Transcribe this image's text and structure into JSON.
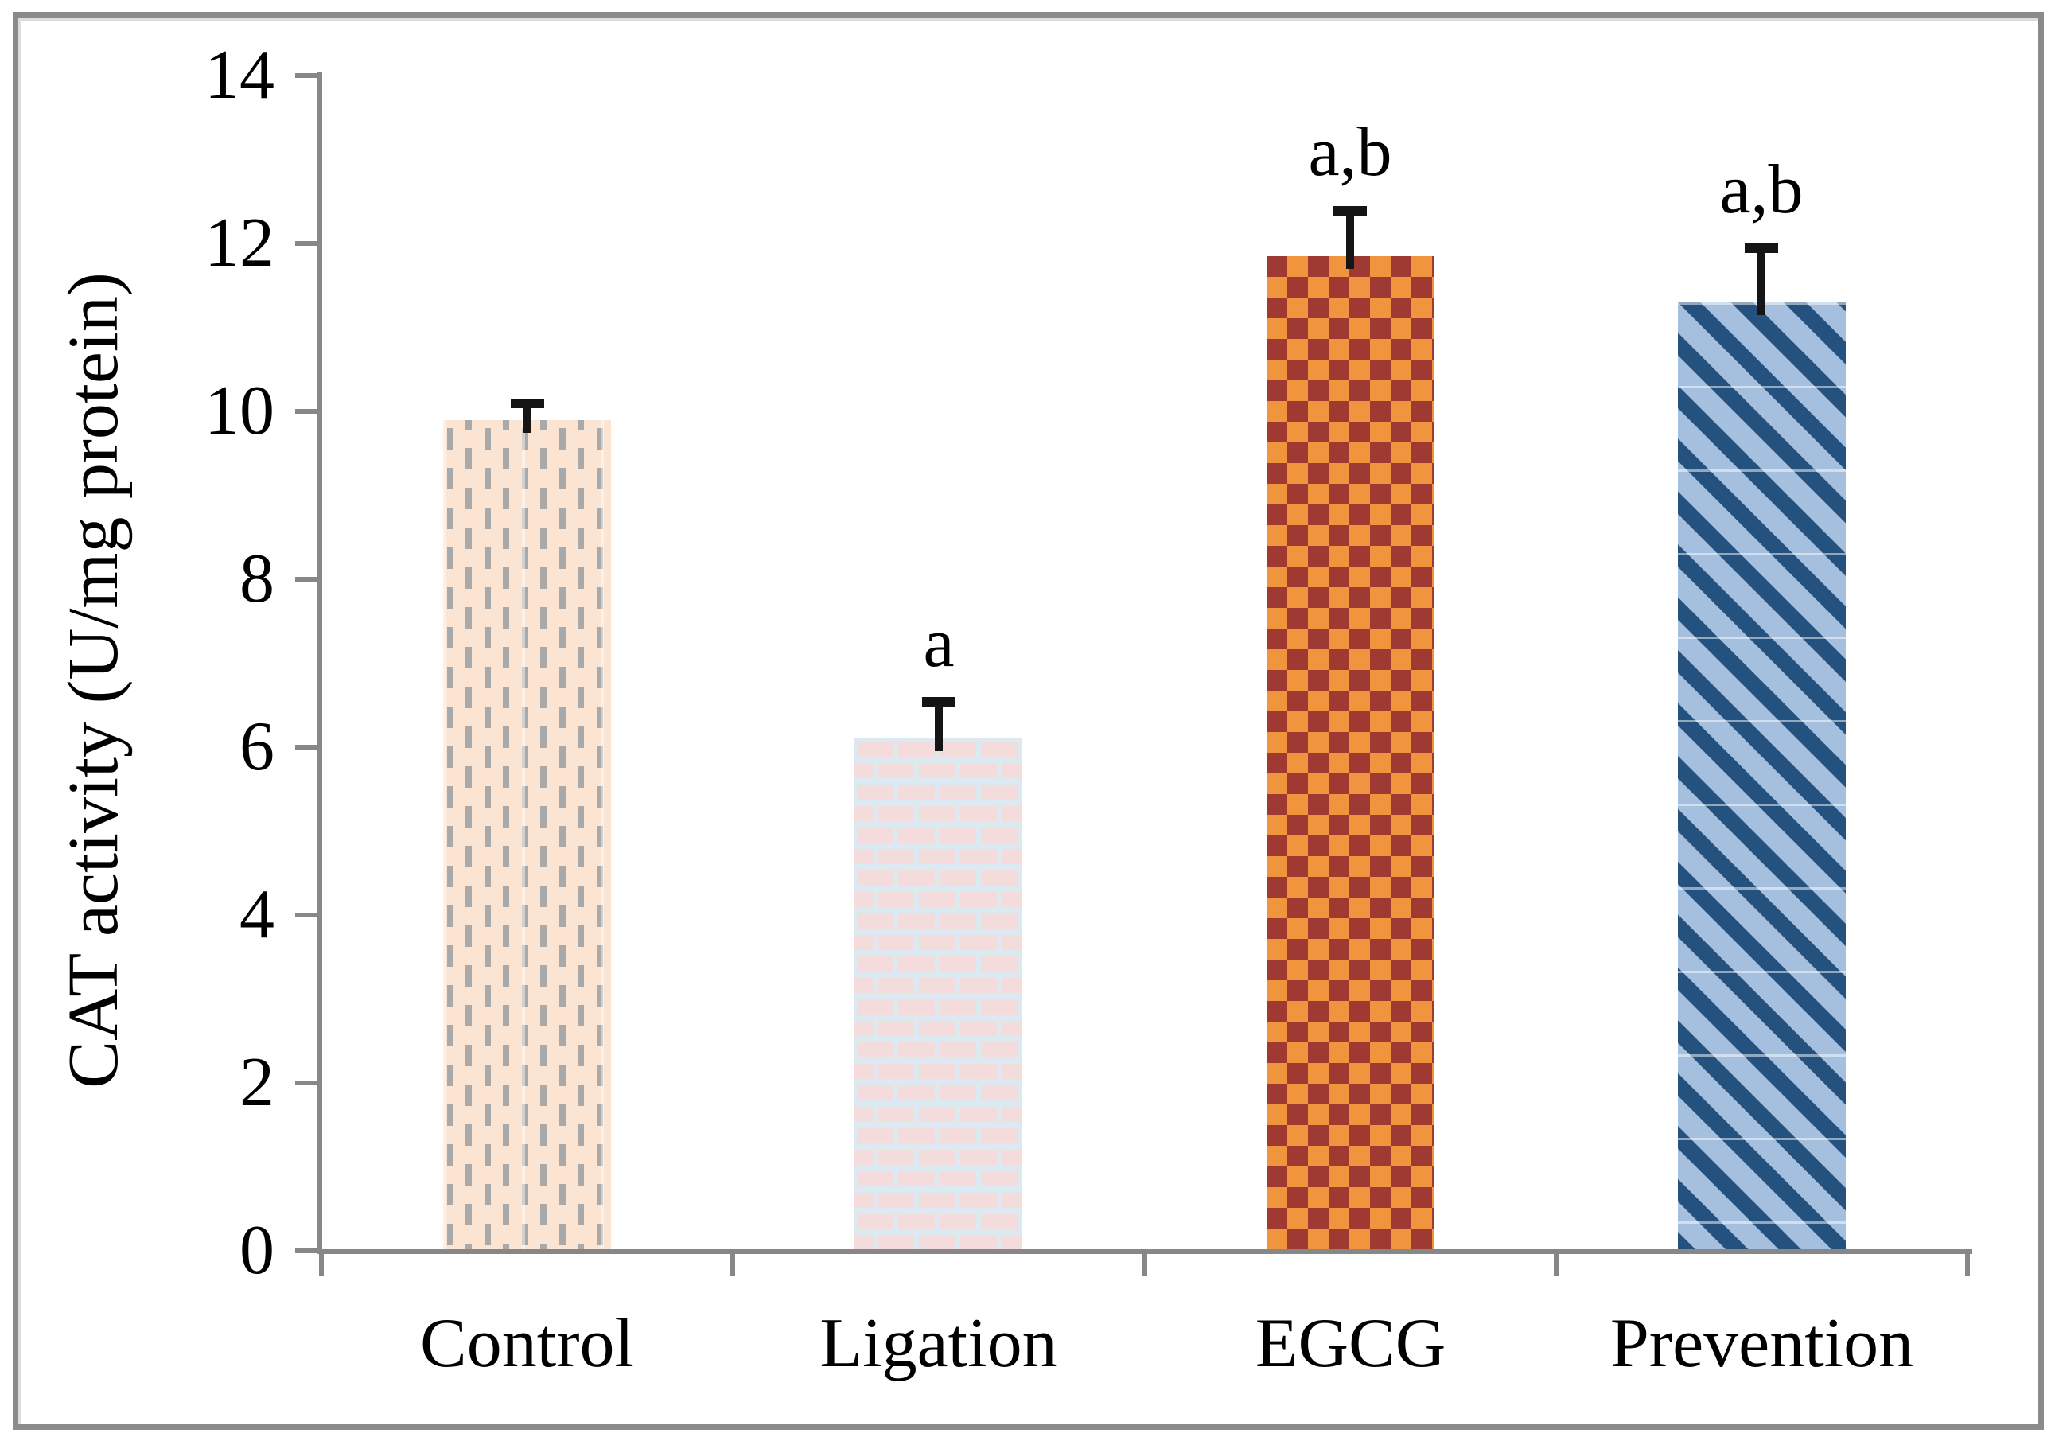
{
  "chart_data": {
    "type": "bar",
    "title": "",
    "ylabel": "CAT activity (U/mg protein)",
    "xlabel": "",
    "categories": [
      "Control",
      "Ligation",
      "EGCG",
      "Prevention"
    ],
    "values": [
      9.9,
      6.1,
      11.85,
      11.3
    ],
    "error_bars": [
      0.25,
      0.5,
      0.6,
      0.7
    ],
    "significance_labels": [
      "",
      "a",
      "a,b",
      "a,b"
    ],
    "ylim": [
      0,
      14
    ],
    "yticks": [
      0,
      2,
      4,
      6,
      8,
      10,
      12,
      14
    ],
    "grid": false,
    "legend": "none",
    "bar_patterns": [
      {
        "style": "vertical-dashes",
        "background": "#fce4d2",
        "foreground": "#a9a9a9"
      },
      {
        "style": "brick",
        "background": "#dce9f1",
        "foreground": "#f3dcdb"
      },
      {
        "style": "checkerboard",
        "background": "#f0943e",
        "foreground": "#9e3a31"
      },
      {
        "style": "diagonal-stripes",
        "background": "#a5bfdf",
        "foreground": "#24517e"
      }
    ],
    "axis_color": "#878787",
    "error_bar_color": "#151515",
    "frame_color": "#8b8b8b",
    "text_color": "#000000"
  }
}
